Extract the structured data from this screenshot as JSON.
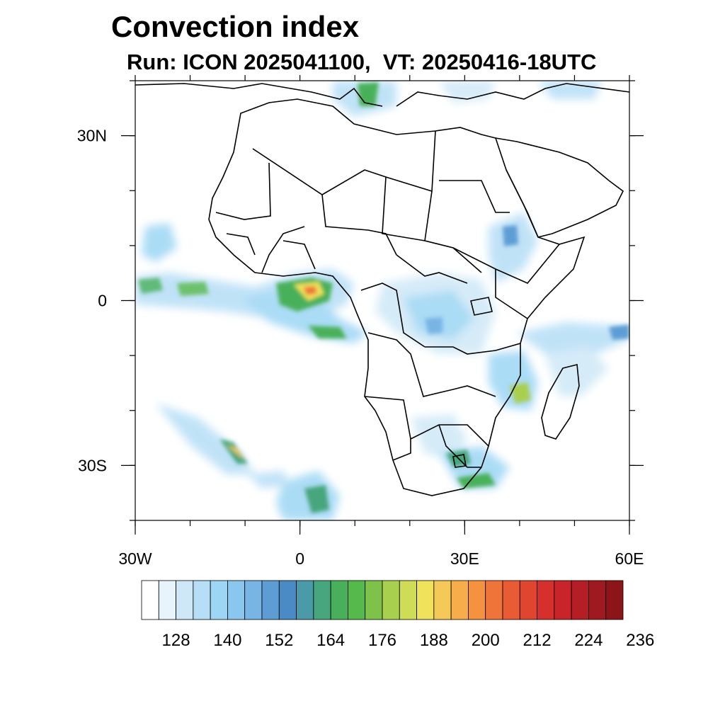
{
  "title": "Convection index",
  "subtitle": "Run: ICON 2025041100,  VT: 20250416-18UTC",
  "map": {
    "region": "Africa",
    "lon_range": [
      -30,
      60
    ],
    "lat_range": [
      -40,
      40
    ],
    "lon_ticks": [
      {
        "value": -30,
        "label": "30W"
      },
      {
        "value": 0,
        "label": "0"
      },
      {
        "value": 30,
        "label": "30E"
      },
      {
        "value": 60,
        "label": "60E"
      }
    ],
    "lat_ticks": [
      {
        "value": 30,
        "label": "30N"
      },
      {
        "value": 0,
        "label": "0"
      },
      {
        "value": -30,
        "label": "30S"
      }
    ]
  },
  "colorbar": {
    "colors": [
      "#ffffff",
      "#e8f4fb",
      "#cfe8f7",
      "#b6def6",
      "#9cd6f4",
      "#8ac7ee",
      "#78b4e4",
      "#5d9dd4",
      "#4b8bc5",
      "#4a9aa8",
      "#47a67d",
      "#48b05a",
      "#56b94b",
      "#7fc24a",
      "#a9cf4f",
      "#cfdc55",
      "#f0e25a",
      "#f5c957",
      "#f6ad4a",
      "#f49240",
      "#ee743a",
      "#e85b34",
      "#e0452f",
      "#d6302d",
      "#c92429",
      "#b51e25",
      "#9f1a20",
      "#8b1518"
    ],
    "labels": [
      "128",
      "140",
      "152",
      "164",
      "176",
      "188",
      "200",
      "212",
      "224",
      "236"
    ]
  }
}
